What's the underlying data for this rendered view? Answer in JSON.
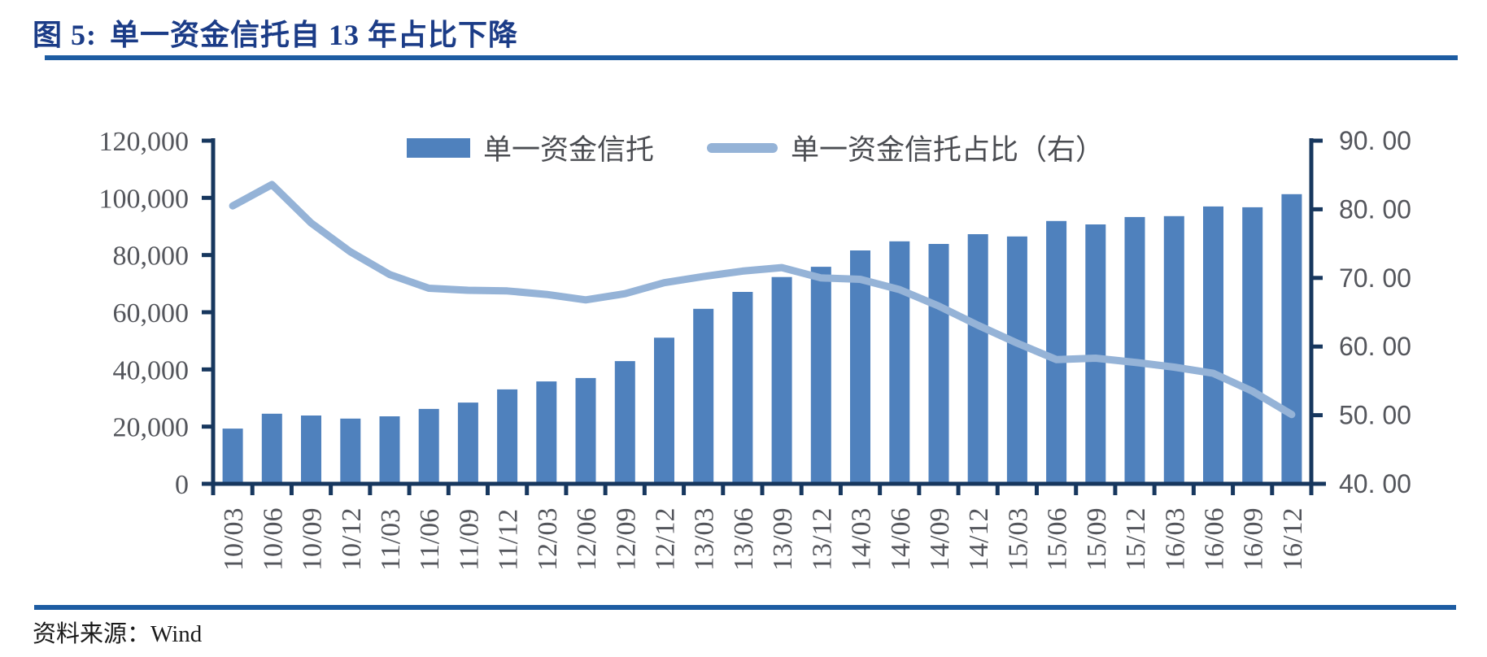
{
  "figure": {
    "title_prefix": "图 5:",
    "title_text": "单一资金信托自 13 年占比下降",
    "source_label": "资料来源：",
    "source_value": "Wind"
  },
  "colors": {
    "bar_series": "#4F81BD",
    "line_series": "#95B3D7",
    "axis": "#17375E",
    "rule": "#1D5CA2",
    "title_text": "#1B3C87",
    "tick_text": "#54565C",
    "legend_text": "#4B4D52",
    "source_text": "#1A1A1A"
  },
  "legend": [
    {
      "series": "bar",
      "label": "单一资金信托"
    },
    {
      "series": "line",
      "label": "单一资金信托占比（右）"
    }
  ],
  "chart_data": {
    "type": "bar",
    "subtype": "bar-plus-line-dual-axis",
    "title": "单一资金信托自 13 年占比下降",
    "grid": false,
    "legend_position": "top-center",
    "categories": [
      "10/03",
      "10/06",
      "10/09",
      "10/12",
      "11/03",
      "11/06",
      "11/09",
      "11/12",
      "12/03",
      "12/06",
      "12/09",
      "12/12",
      "13/03",
      "13/06",
      "13/09",
      "13/12",
      "14/03",
      "14/06",
      "14/09",
      "14/12",
      "15/03",
      "15/06",
      "15/09",
      "15/12",
      "16/03",
      "16/06",
      "16/09",
      "16/12"
    ],
    "series": [
      {
        "name": "单一资金信托",
        "type": "bar",
        "axis": "left",
        "values": [
          19300,
          24500,
          23900,
          22800,
          23600,
          26200,
          28400,
          33000,
          35800,
          37000,
          42900,
          51100,
          61200,
          67100,
          72300,
          75900,
          81600,
          84800,
          83900,
          87300,
          86500,
          91900,
          90700,
          93300,
          93600,
          97000,
          96700,
          101300
        ]
      },
      {
        "name": "单一资金信托占比（右）",
        "type": "line",
        "axis": "right",
        "values": [
          80.5,
          83.6,
          78.0,
          73.8,
          70.5,
          68.5,
          68.2,
          68.1,
          67.6,
          66.8,
          67.7,
          69.3,
          70.2,
          71.0,
          71.5,
          70.0,
          69.8,
          68.3,
          65.9,
          63.1,
          60.5,
          58.1,
          58.3,
          57.7,
          57.0,
          56.1,
          53.5,
          50.1
        ]
      }
    ],
    "left_axis": {
      "min": 0,
      "max": 120000,
      "step": 20000,
      "tick_values": [
        0,
        20000,
        40000,
        60000,
        80000,
        100000,
        120000
      ],
      "tick_labels": [
        "0",
        "20,000",
        "40,000",
        "60,000",
        "80,000",
        "100,000",
        "120,000"
      ]
    },
    "right_axis": {
      "min": 40,
      "max": 90,
      "step": 10,
      "tick_values": [
        40,
        50,
        60,
        70,
        80,
        90
      ],
      "tick_labels": [
        "40. 00",
        "50. 00",
        "60. 00",
        "70. 00",
        "80. 00",
        "90. 00"
      ]
    }
  }
}
